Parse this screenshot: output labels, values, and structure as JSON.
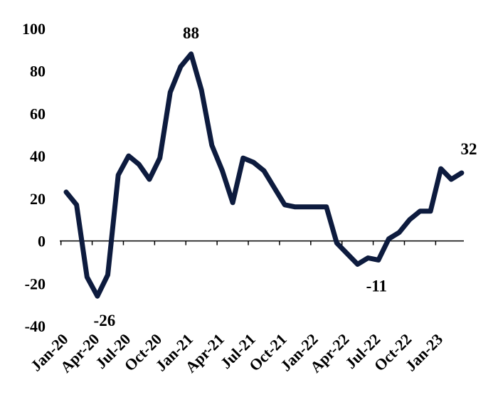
{
  "chart_data": {
    "type": "line",
    "title": "",
    "xlabel": "",
    "ylabel": "",
    "ylim": [
      -40,
      100
    ],
    "yticks": [
      -40,
      -20,
      0,
      20,
      40,
      60,
      80,
      100
    ],
    "grid": false,
    "legend": "none",
    "line_color": "#0d1b3e",
    "x": [
      "Jan-20",
      "Feb-20",
      "Mar-20",
      "Apr-20",
      "May-20",
      "Jun-20",
      "Jul-20",
      "Aug-20",
      "Sep-20",
      "Oct-20",
      "Nov-20",
      "Dec-20",
      "Jan-21",
      "Feb-21",
      "Mar-21",
      "Apr-21",
      "May-21",
      "Jun-21",
      "Jul-21",
      "Aug-21",
      "Sep-21",
      "Oct-21",
      "Nov-21",
      "Dec-21",
      "Jan-22",
      "Feb-22",
      "Mar-22",
      "Apr-22",
      "May-22",
      "Jun-22",
      "Jul-22",
      "Aug-22",
      "Sep-22",
      "Oct-22",
      "Nov-22",
      "Dec-22",
      "Jan-23",
      "Feb-23",
      "Mar-23",
      "Apr-23"
    ],
    "xtick_labels": [
      "Jan-20",
      "Apr-20",
      "Jul-20",
      "Oct-20",
      "Jan-21",
      "Apr-21",
      "Jul-21",
      "Oct-21",
      "Jan-22",
      "Apr-22",
      "Jul-22",
      "Oct-22",
      "Jan-23"
    ],
    "series": [
      {
        "values": [
          23,
          17,
          -17,
          -26,
          -16,
          31,
          40,
          36,
          29,
          39,
          70,
          82,
          88,
          71,
          45,
          33,
          18,
          39,
          37,
          33,
          25,
          17,
          16,
          16,
          16,
          16,
          -1,
          -6,
          -11,
          -8,
          -9,
          1,
          4,
          10,
          14,
          14,
          34,
          29,
          32,
          null
        ]
      }
    ],
    "annotations": [
      {
        "x": "Apr-20",
        "y": -26,
        "text": "-26"
      },
      {
        "x": "Jan-21",
        "y": 88,
        "text": "88"
      },
      {
        "x": "Jun-22",
        "y": -11,
        "text": "-11"
      },
      {
        "x": "Mar-23",
        "y": 32,
        "text": "32"
      }
    ]
  }
}
